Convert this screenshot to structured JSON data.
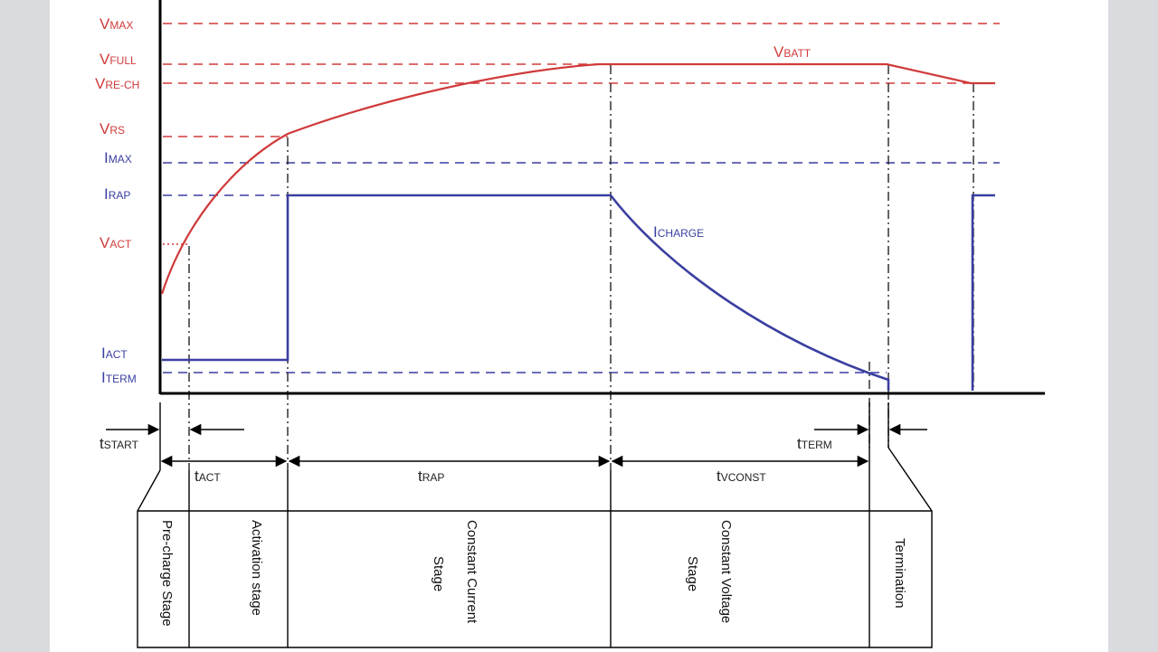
{
  "colors": {
    "voltage": "#d03a3a",
    "current": "#3a3fa0",
    "axis": "#000000",
    "panel": "#ffffff",
    "background": "#d9dbdf"
  },
  "voltage_levels": {
    "vmax": {
      "main": "V",
      "sub": "MAX"
    },
    "vfull": {
      "main": "V",
      "sub": "FULL"
    },
    "vrech": {
      "main": "V",
      "sub": "RE-CH"
    },
    "vrs": {
      "main": "V",
      "sub": "RS"
    },
    "vact": {
      "main": "V",
      "sub": "ACT"
    }
  },
  "current_levels": {
    "imax": {
      "main": "I",
      "sub": "MAX"
    },
    "irap": {
      "main": "I",
      "sub": "RAP"
    },
    "iact": {
      "main": "I",
      "sub": "ACT"
    },
    "iterm": {
      "main": "I",
      "sub": "TERM"
    }
  },
  "curves": {
    "vbatt": {
      "main": "V",
      "sub": "BATT"
    },
    "icharge": {
      "main": "I",
      "sub": "CHARGE"
    }
  },
  "time_intervals": {
    "tstart": {
      "main": "t",
      "sub": "START"
    },
    "tact": {
      "main": "t",
      "sub": "ACT"
    },
    "trap": {
      "main": "t",
      "sub": "RAP"
    },
    "tvconst": {
      "main": "t",
      "sub": "VCONST"
    },
    "tterm": {
      "main": "t",
      "sub": "TERM"
    }
  },
  "stages": {
    "precharge": [
      "Pre-charge Stage"
    ],
    "activation": [
      "Activation stage"
    ],
    "constant_current": [
      "Constant Current",
      "Stage"
    ],
    "constant_voltage": [
      "Constant Voltage",
      "Stage"
    ],
    "termination": [
      "Termination"
    ]
  }
}
